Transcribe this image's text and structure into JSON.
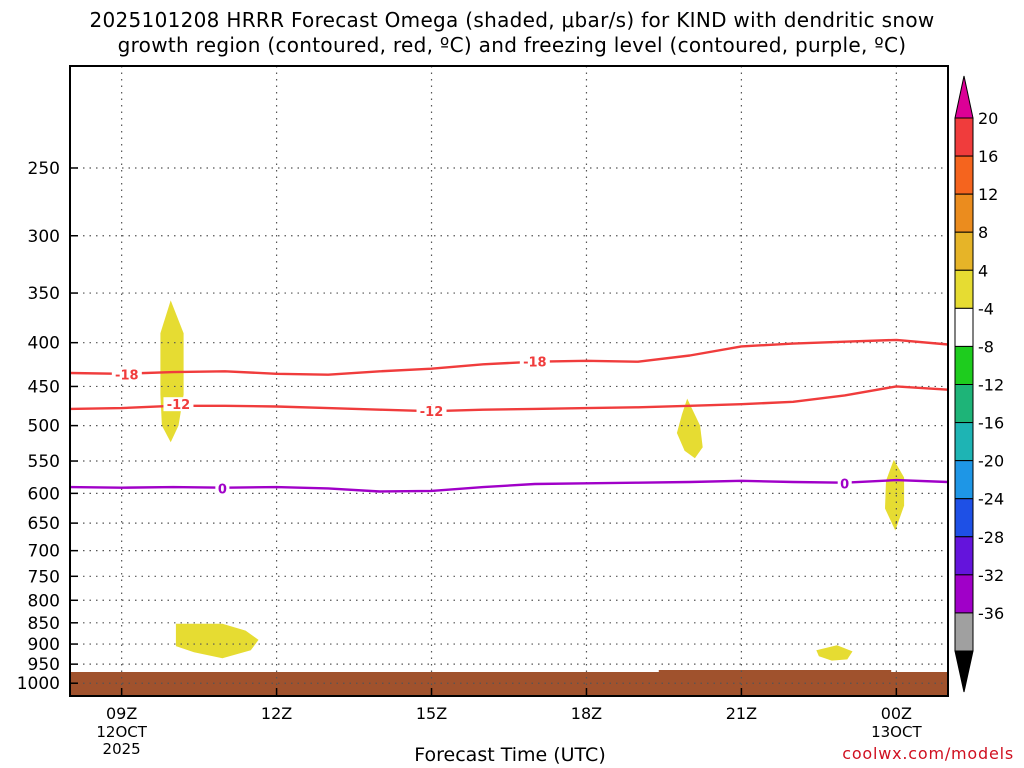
{
  "chart_data": {
    "type": "time-height cross section",
    "title_line1": "2025101208 HRRR Forecast Omega (shaded, μbar/s) for KIND with dendritic snow",
    "title_line2": "growth region (contoured, red, ºC) and freezing level (contoured, purple, ºC)",
    "xlabel": "Forecast Time (UTC)",
    "credit": "coolwx.com/models",
    "x_range_hours": [
      8,
      25
    ],
    "x_ticks": [
      {
        "hour": 9,
        "label": "09Z",
        "sub": [
          "12OCT",
          "2025"
        ]
      },
      {
        "hour": 12,
        "label": "12Z",
        "sub": []
      },
      {
        "hour": 15,
        "label": "15Z",
        "sub": []
      },
      {
        "hour": 18,
        "label": "18Z",
        "sub": []
      },
      {
        "hour": 21,
        "label": "21Z",
        "sub": []
      },
      {
        "hour": 24,
        "label": "00Z",
        "sub": [
          "13OCT"
        ]
      }
    ],
    "y_range_hpa": [
      190,
      1035
    ],
    "y_ticks": [
      250,
      300,
      350,
      400,
      450,
      500,
      550,
      600,
      650,
      700,
      750,
      800,
      850,
      900,
      950,
      1000
    ],
    "contours": [
      {
        "name": "-18 ºC",
        "label": "-18",
        "color": "#f03c3c",
        "label_positions": [
          [
            9.1,
            436
          ],
          [
            17.0,
            421
          ]
        ],
        "points": [
          [
            8,
            434
          ],
          [
            9,
            435
          ],
          [
            10,
            433
          ],
          [
            11,
            432
          ],
          [
            12,
            435
          ],
          [
            13,
            436
          ],
          [
            14,
            432
          ],
          [
            15,
            429
          ],
          [
            16,
            424
          ],
          [
            17,
            421
          ],
          [
            18,
            420
          ],
          [
            19,
            421
          ],
          [
            20,
            414
          ],
          [
            21,
            404
          ],
          [
            22,
            401
          ],
          [
            23,
            399
          ],
          [
            24,
            397
          ],
          [
            25,
            402
          ]
        ]
      },
      {
        "name": "-12 ºC",
        "label": "-12",
        "color": "#f03c3c",
        "label_positions": [
          [
            10.1,
            472
          ],
          [
            15.0,
            481
          ]
        ],
        "points": [
          [
            8,
            478
          ],
          [
            9,
            477
          ],
          [
            10,
            474
          ],
          [
            11,
            474
          ],
          [
            12,
            475
          ],
          [
            13,
            477
          ],
          [
            14,
            479
          ],
          [
            15,
            481
          ],
          [
            16,
            479
          ],
          [
            17,
            478
          ],
          [
            18,
            477
          ],
          [
            19,
            476
          ],
          [
            20,
            474
          ],
          [
            21,
            472
          ],
          [
            22,
            469
          ],
          [
            23,
            461
          ],
          [
            24,
            450
          ],
          [
            25,
            454
          ]
        ]
      },
      {
        "name": "0 ºC",
        "label": "0",
        "color": "#a000c8",
        "label_positions": [
          [
            10.95,
            592
          ],
          [
            23.0,
            584
          ]
        ],
        "points": [
          [
            8,
            590
          ],
          [
            9,
            591
          ],
          [
            10,
            590
          ],
          [
            11,
            591
          ],
          [
            12,
            590
          ],
          [
            13,
            592
          ],
          [
            14,
            597
          ],
          [
            15,
            596
          ],
          [
            16,
            590
          ],
          [
            17,
            585
          ],
          [
            18,
            584
          ],
          [
            19,
            583
          ],
          [
            20,
            582
          ],
          [
            21,
            580
          ],
          [
            22,
            582
          ],
          [
            23,
            583
          ],
          [
            24,
            579
          ],
          [
            25,
            582
          ]
        ]
      }
    ],
    "shaded_regions": [
      {
        "name": "omega 4-8 upper",
        "color": "#e6dc32",
        "polygon": [
          [
            9.95,
            357
          ],
          [
            10.2,
            390
          ],
          [
            10.2,
            460
          ],
          [
            10.1,
            500
          ],
          [
            9.95,
            523
          ],
          [
            9.78,
            500
          ],
          [
            9.75,
            460
          ],
          [
            9.75,
            390
          ]
        ]
      },
      {
        "name": "omega 4-8 mid",
        "color": "#e6dc32",
        "polygon": [
          [
            19.95,
            465
          ],
          [
            20.2,
            500
          ],
          [
            20.25,
            530
          ],
          [
            20.1,
            546
          ],
          [
            19.9,
            535
          ],
          [
            19.75,
            510
          ],
          [
            19.85,
            485
          ]
        ]
      },
      {
        "name": "omega 4-8 right",
        "color": "#e6dc32",
        "polygon": [
          [
            23.95,
            548
          ],
          [
            24.15,
            575
          ],
          [
            24.15,
            620
          ],
          [
            23.98,
            663
          ],
          [
            23.78,
            625
          ],
          [
            23.8,
            580
          ]
        ]
      },
      {
        "name": "omega 4-8 low-left",
        "color": "#e6dc32",
        "polygon": [
          [
            10.05,
            852
          ],
          [
            10.95,
            852
          ],
          [
            11.4,
            868
          ],
          [
            11.65,
            890
          ],
          [
            11.5,
            915
          ],
          [
            10.95,
            935
          ],
          [
            10.4,
            920
          ],
          [
            10.05,
            905
          ]
        ]
      },
      {
        "name": "omega 4-8 low-right",
        "color": "#e6dc32",
        "polygon": [
          [
            22.45,
            915
          ],
          [
            22.85,
            903
          ],
          [
            23.15,
            918
          ],
          [
            23.05,
            938
          ],
          [
            22.75,
            941
          ],
          [
            22.5,
            930
          ]
        ]
      }
    ],
    "colorbar": {
      "labels": [
        "20",
        "16",
        "12",
        "8",
        "4",
        "-4",
        "-8",
        "-12",
        "-16",
        "-20",
        "-24",
        "-28",
        "-32",
        "-36"
      ],
      "segments": [
        "#f03c3c",
        "#f5641e",
        "#eb8c1e",
        "#e6b428",
        "#e6dc32",
        "#ffffff",
        "#1ecc1e",
        "#1eb478",
        "#1eb4b4",
        "#1e96e6",
        "#1e50e6",
        "#6414dc",
        "#a000c8",
        "#a0a0a0"
      ],
      "top_arrow_color": "#dc0096",
      "bottom_arrow_color": "#000000"
    },
    "surface_color": "#a0522d"
  }
}
